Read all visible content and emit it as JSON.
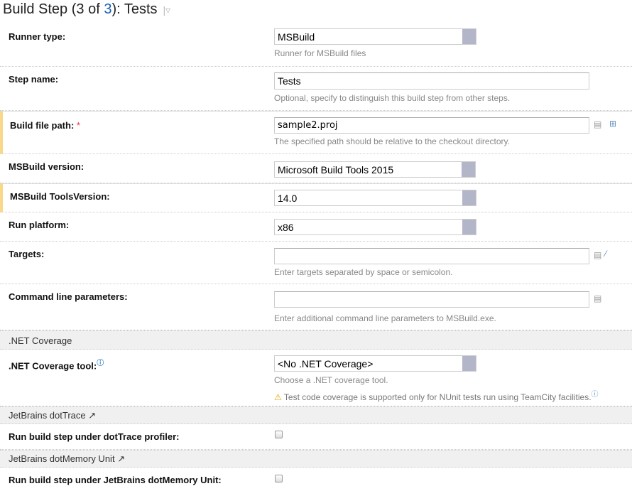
{
  "header": {
    "title_prefix": "Build Step (3 of ",
    "title_link": "3",
    "title_suffix": "): Tests"
  },
  "fields": {
    "runner_type": {
      "label": "Runner type:",
      "value": "MSBuild",
      "note": "Runner for MSBuild files"
    },
    "step_name": {
      "label": "Step name:",
      "value": "Tests",
      "note": "Optional, specify to distinguish this build step from other steps."
    },
    "build_file_path": {
      "label": "Build file path:",
      "required": "*",
      "value": "sample2.proj",
      "note": "The specified path should be relative to the checkout directory."
    },
    "msbuild_version": {
      "label": "MSBuild version:",
      "value": "Microsoft Build Tools 2015"
    },
    "tools_version": {
      "label": "MSBuild ToolsVersion:",
      "value": "14.0"
    },
    "run_platform": {
      "label": "Run platform:",
      "value": "x86"
    },
    "targets": {
      "label": "Targets:",
      "value": "",
      "note": "Enter targets separated by space or semicolon."
    },
    "cmd_params": {
      "label": "Command line parameters:",
      "value": "",
      "note": "Enter additional command line parameters to MSBuild.exe."
    }
  },
  "coverage": {
    "section": ".NET Coverage",
    "label": ".NET Coverage tool:",
    "value": "<No .NET Coverage>",
    "note": "Choose a .NET coverage tool.",
    "warning": "Test code coverage is supported only for NUnit tests run using TeamCity facilities."
  },
  "dottrace": {
    "section": "JetBrains dotTrace",
    "label": "Run build step under dotTrace profiler:",
    "checked": false
  },
  "dotmemory": {
    "section": "JetBrains dotMemory Unit",
    "label": "Run build step under JetBrains dotMemory Unit:",
    "checked": false
  }
}
